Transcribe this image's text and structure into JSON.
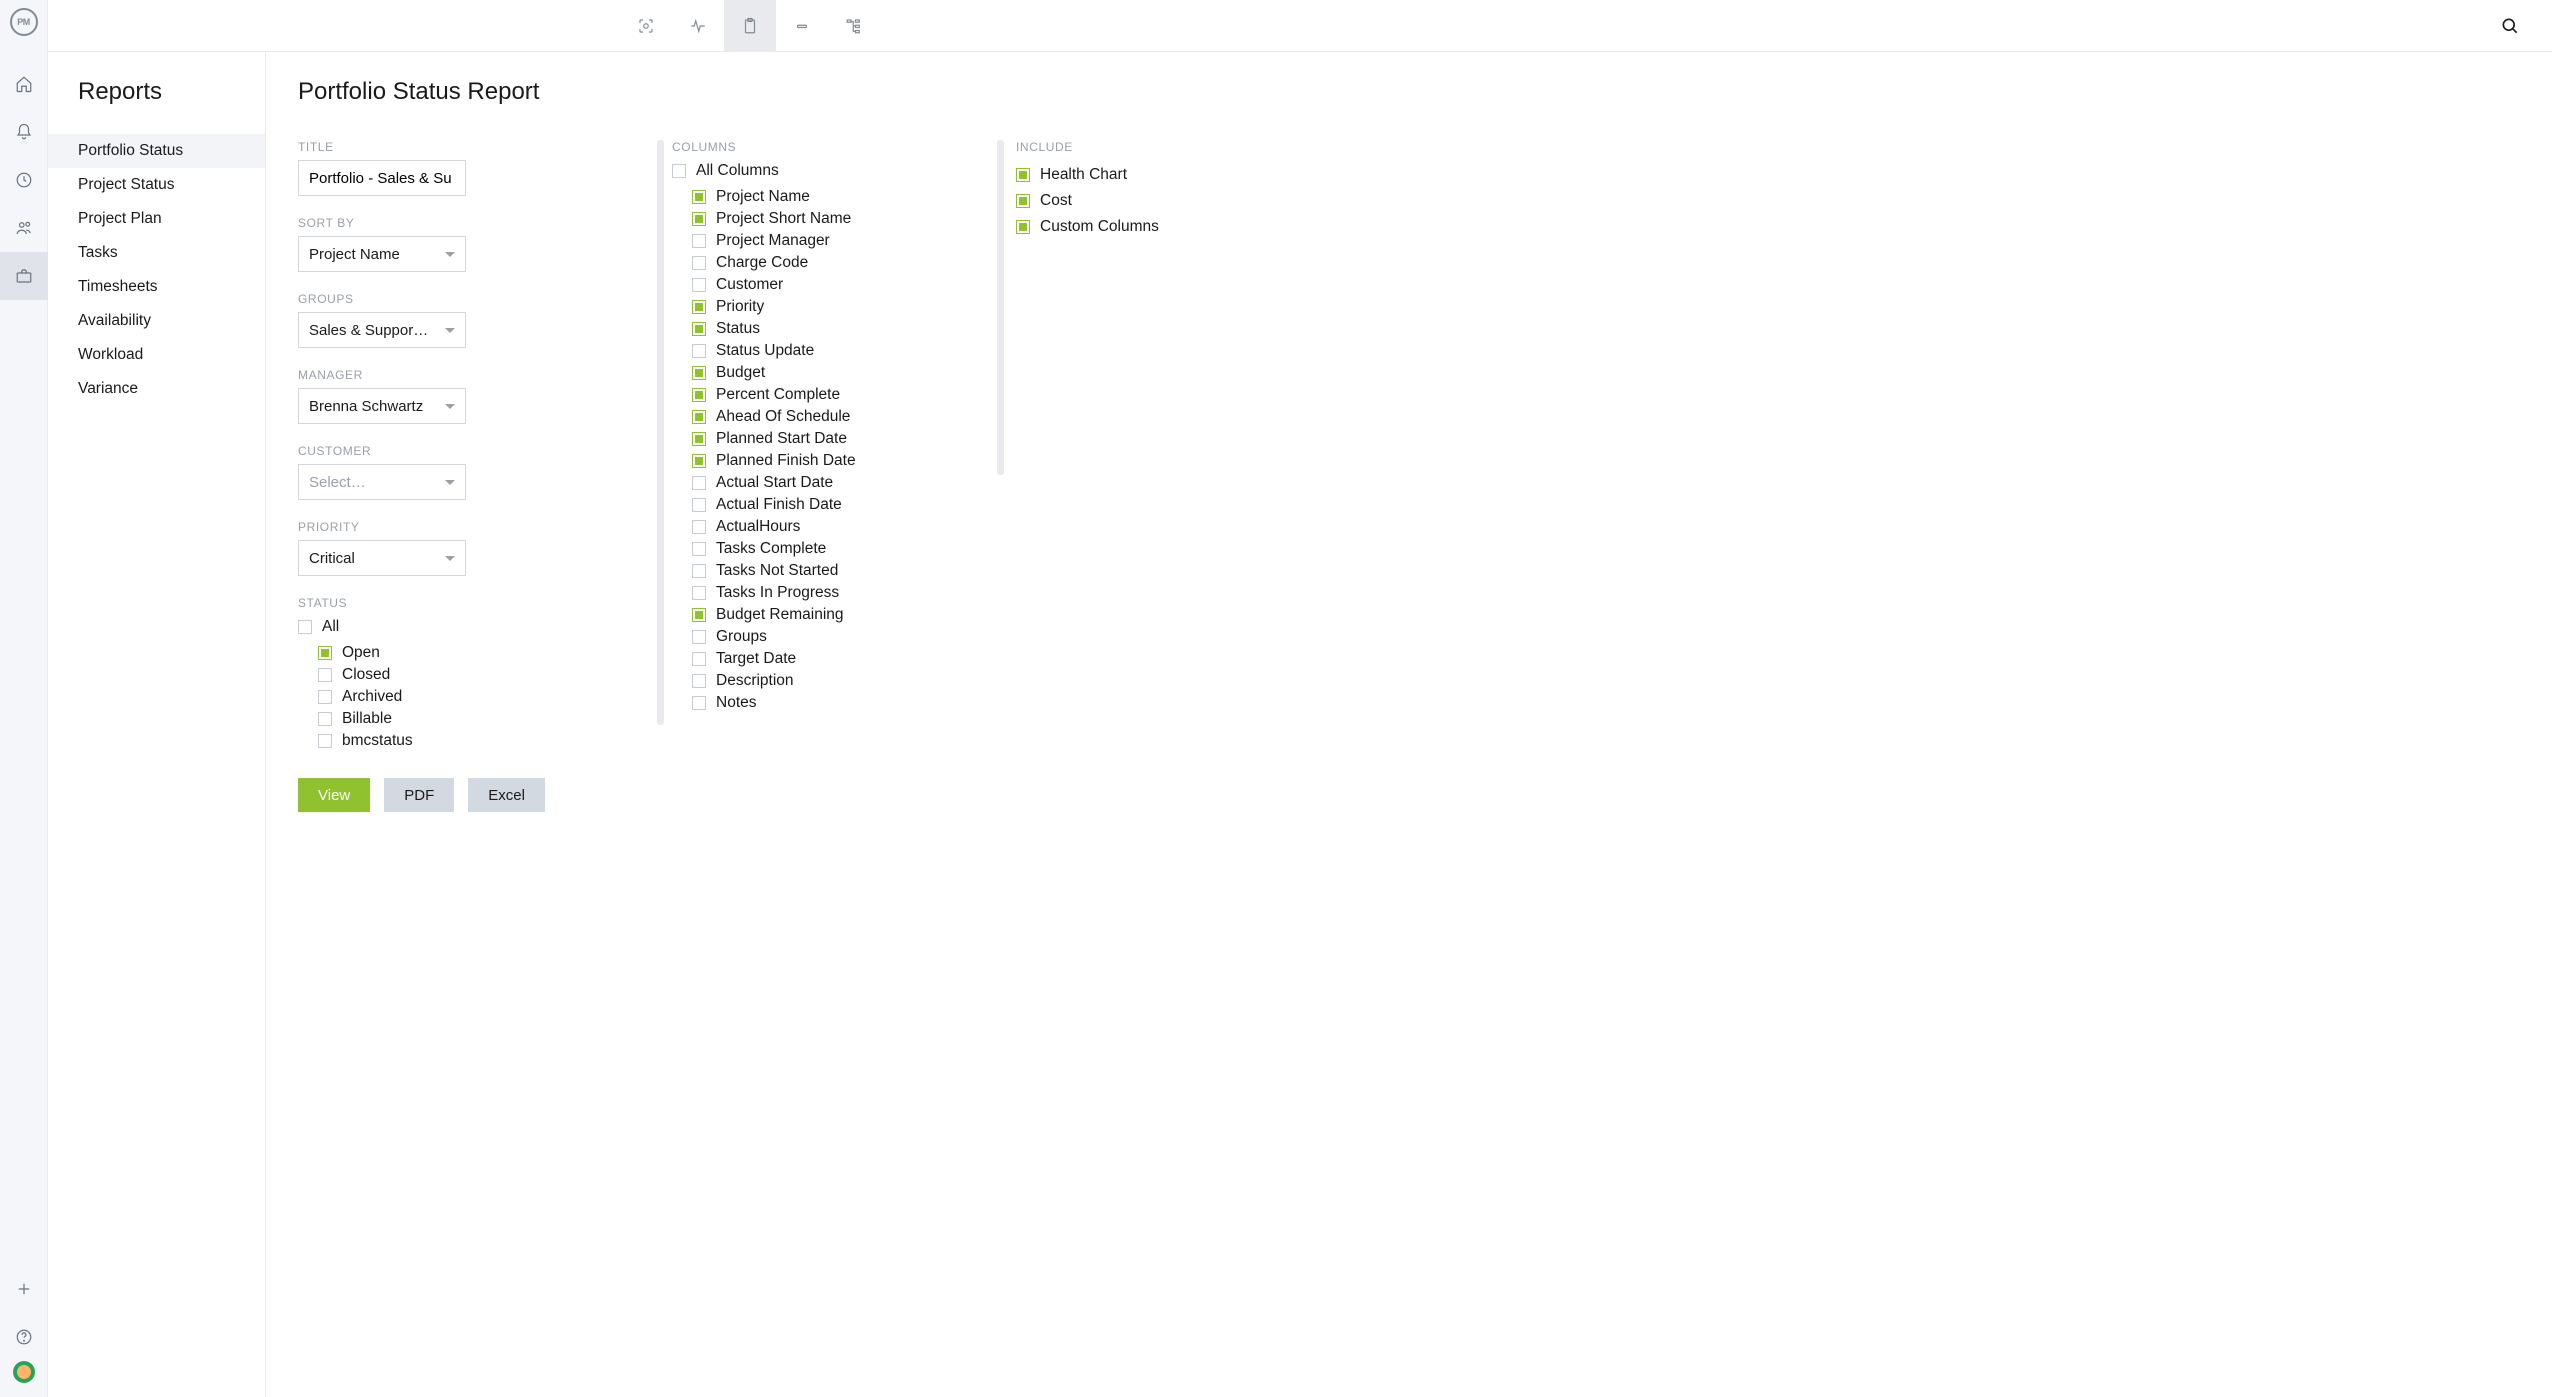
{
  "colors": {
    "accent_green": "#8fc22e",
    "rail_bg": "#f4f6f9",
    "border": "#e8eaed",
    "text_muted": "#9aa0a6",
    "button_secondary_bg": "#d3d9e1"
  },
  "logo_text": "PM",
  "sidebar": {
    "title": "Reports",
    "items": [
      {
        "label": "Portfolio Status",
        "active": true
      },
      {
        "label": "Project Status"
      },
      {
        "label": "Project Plan"
      },
      {
        "label": "Tasks"
      },
      {
        "label": "Timesheets"
      },
      {
        "label": "Availability"
      },
      {
        "label": "Workload"
      },
      {
        "label": "Variance"
      }
    ]
  },
  "page": {
    "title": "Portfolio Status Report"
  },
  "filters": {
    "title": {
      "label": "TITLE",
      "value": "Portfolio - Sales & Su"
    },
    "sort_by": {
      "label": "SORT BY",
      "value": "Project Name"
    },
    "groups": {
      "label": "GROUPS",
      "value": "Sales & Suppor…"
    },
    "manager": {
      "label": "MANAGER",
      "value": "Brenna Schwartz"
    },
    "customer": {
      "label": "CUSTOMER",
      "value": "",
      "placeholder": "Select…"
    },
    "priority": {
      "label": "PRIORITY",
      "value": "Critical"
    },
    "status": {
      "label": "STATUS",
      "all_label": "All",
      "options": [
        {
          "label": "Open",
          "checked": true
        },
        {
          "label": "Closed",
          "checked": false
        },
        {
          "label": "Archived",
          "checked": false
        },
        {
          "label": "Billable",
          "checked": false
        },
        {
          "label": "bmcstatus",
          "checked": false
        }
      ]
    }
  },
  "columns": {
    "label": "COLUMNS",
    "all_label": "All Columns",
    "items": [
      {
        "label": "Project Name",
        "checked": true
      },
      {
        "label": "Project Short Name",
        "checked": true
      },
      {
        "label": "Project Manager",
        "checked": false
      },
      {
        "label": "Charge Code",
        "checked": false
      },
      {
        "label": "Customer",
        "checked": false
      },
      {
        "label": "Priority",
        "checked": true
      },
      {
        "label": "Status",
        "checked": true
      },
      {
        "label": "Status Update",
        "checked": false
      },
      {
        "label": "Budget",
        "checked": true
      },
      {
        "label": "Percent Complete",
        "checked": true
      },
      {
        "label": "Ahead Of Schedule",
        "checked": true
      },
      {
        "label": "Planned Start Date",
        "checked": true
      },
      {
        "label": "Planned Finish Date",
        "checked": true
      },
      {
        "label": "Actual Start Date",
        "checked": false
      },
      {
        "label": "Actual Finish Date",
        "checked": false
      },
      {
        "label": "ActualHours",
        "checked": false
      },
      {
        "label": "Tasks Complete",
        "checked": false
      },
      {
        "label": "Tasks Not Started",
        "checked": false
      },
      {
        "label": "Tasks In Progress",
        "checked": false
      },
      {
        "label": "Budget Remaining",
        "checked": true
      },
      {
        "label": "Groups",
        "checked": false
      },
      {
        "label": "Target Date",
        "checked": false
      },
      {
        "label": "Description",
        "checked": false
      },
      {
        "label": "Notes",
        "checked": false
      }
    ]
  },
  "include": {
    "label": "INCLUDE",
    "items": [
      {
        "label": "Health Chart",
        "checked": true
      },
      {
        "label": "Cost",
        "checked": true
      },
      {
        "label": "Custom Columns",
        "checked": true
      }
    ]
  },
  "buttons": {
    "view": "View",
    "pdf": "PDF",
    "excel": "Excel"
  }
}
